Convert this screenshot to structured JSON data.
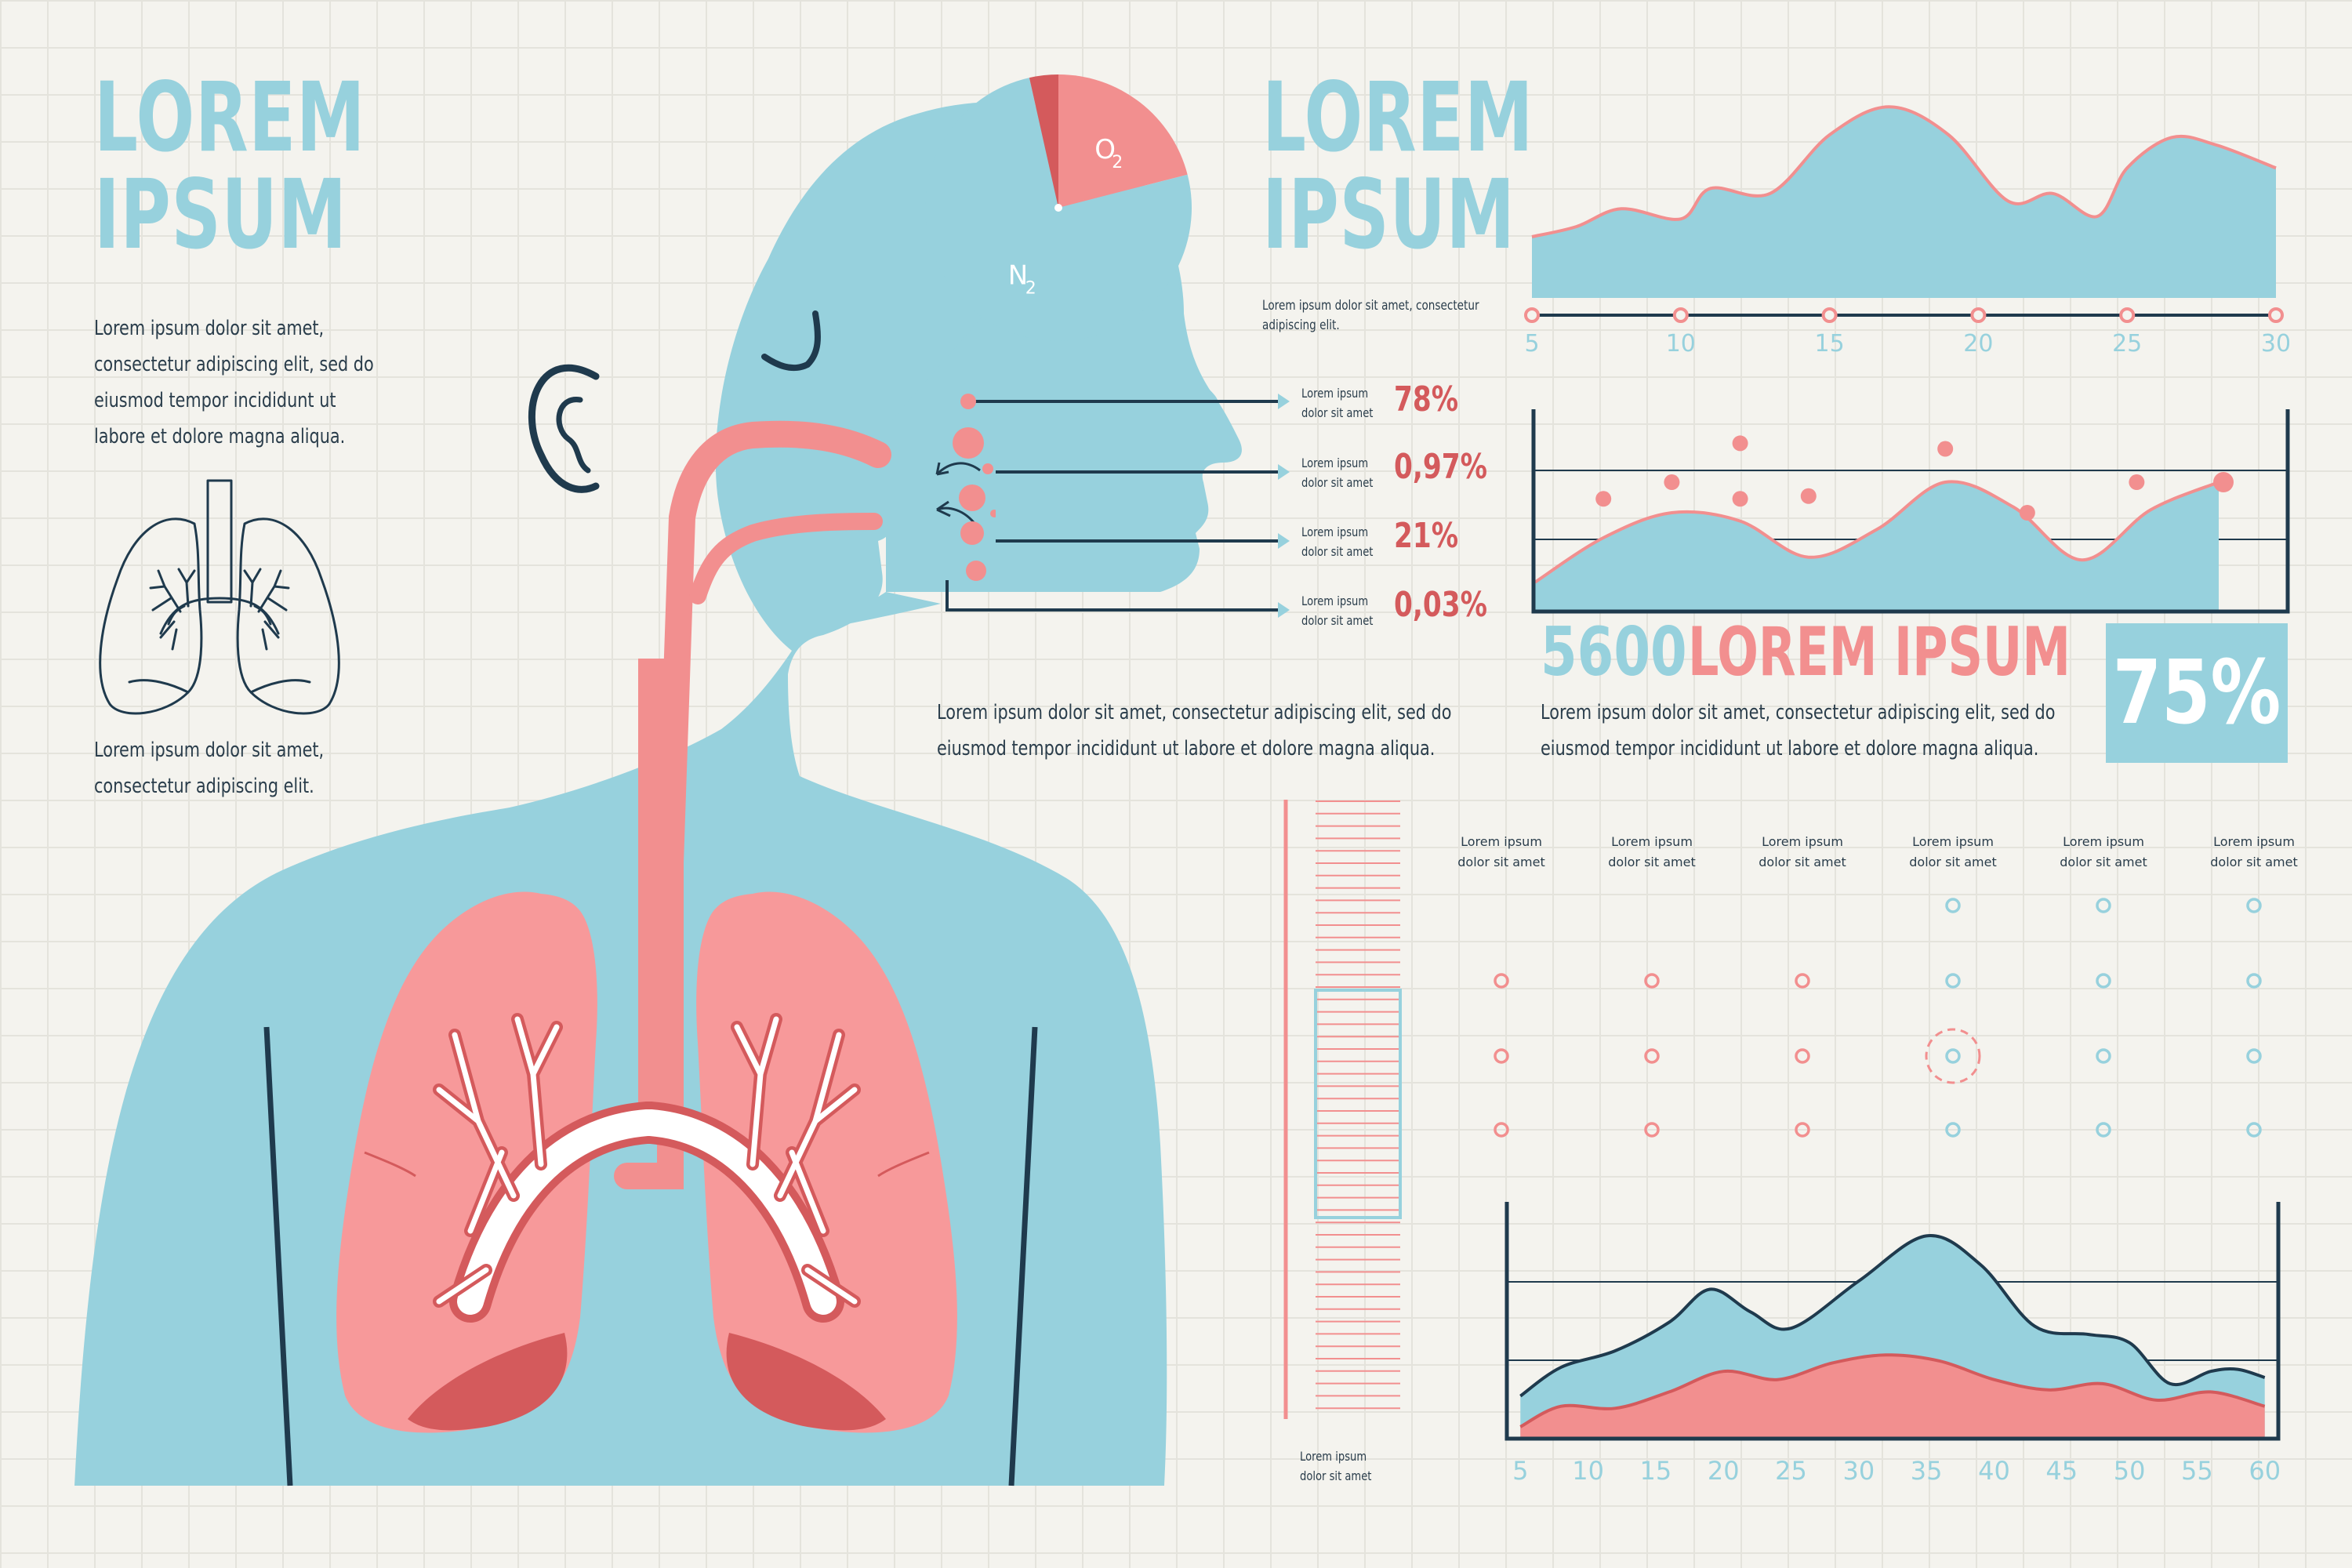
{
  "colors": {
    "blue": "#97d1dd",
    "pink": "#f28f8f",
    "red": "#d45a5c",
    "dark": "#1f3a4d",
    "background": "#f4f3ee"
  },
  "header_left": {
    "line1": "LOREM",
    "line2": "IPSUM"
  },
  "header_mid": {
    "line1": "LOREM",
    "line2": "IPSUM"
  },
  "left_text": {
    "lines": [
      "Lorem ipsum dolor sit amet,",
      "consectetur adipiscing elit, sed do",
      "eiusmod tempor incididunt ut",
      "labore et dolore magna aliqua."
    ]
  },
  "left_text2": {
    "lines": [
      "Lorem ipsum dolor sit amet,",
      "consectetur adipiscing elit."
    ]
  },
  "mid_small": {
    "lines": [
      "Lorem ipsum dolor sit amet, consectetur",
      "adipiscing elit."
    ]
  },
  "gas_list": [
    {
      "label1": "Lorem ipsum",
      "label2": "dolor sit amet",
      "value": "78%"
    },
    {
      "label1": "Lorem ipsum",
      "label2": "dolor sit amet",
      "value": "0,97%"
    },
    {
      "label1": "Lorem ipsum",
      "label2": "dolor sit amet",
      "value": "21%"
    },
    {
      "label1": "Lorem ipsum",
      "label2": "dolor sit amet",
      "value": "0,03%"
    }
  ],
  "mid_para": {
    "lines": [
      "Lorem ipsum dolor sit amet, consectetur adipiscing elit, sed do",
      "eiusmod tempor incididunt ut labore et dolore magna aliqua."
    ]
  },
  "right_para": {
    "lines": [
      "Lorem ipsum dolor sit amet, consectetur adipiscing elit, sed do",
      "eiusmod tempor incididunt ut labore et dolore magna aliqua."
    ]
  },
  "stat": {
    "value": "5600",
    "label": "LOREM IPSUM"
  },
  "badge": {
    "value": "75%"
  },
  "gauge_caption": {
    "line1": "Lorem ipsum",
    "line2": "dolor sit amet"
  },
  "chart_data": [
    {
      "type": "pie",
      "slices": [
        {
          "label": "O2",
          "main": "O",
          "sub": "2",
          "value": 21,
          "color": "#f28f8f"
        },
        {
          "label": "N2",
          "main": "N",
          "sub": "2",
          "value": 75.5,
          "color": "#97d1dd"
        },
        {
          "label": "",
          "value": 3.5,
          "color": "#d45a5c"
        }
      ]
    },
    {
      "type": "area",
      "x_ticks": [
        5,
        10,
        15,
        20,
        25,
        30
      ],
      "x": [
        5,
        6.5,
        8,
        10,
        11,
        13,
        15,
        17,
        19,
        21,
        22.5,
        24,
        25,
        26.5,
        28,
        30
      ],
      "y": [
        2.4,
        2.8,
        3.5,
        3.1,
        4.3,
        4.1,
        6.4,
        7.5,
        6.4,
        3.8,
        4.1,
        3.2,
        5.1,
        6.3,
        6.0,
        5.1
      ],
      "ylim": [
        0,
        8
      ]
    },
    {
      "type": "area",
      "x": [
        0,
        1,
        2,
        3,
        4,
        5,
        6,
        7,
        8,
        9,
        10
      ],
      "y": [
        1.0,
        2.6,
        3.5,
        3.2,
        1.9,
        2.9,
        4.6,
        3.7,
        1.8,
        3.6,
        4.6
      ],
      "points": [
        {
          "x": 1,
          "y": 4.0
        },
        {
          "x": 2,
          "y": 4.6
        },
        {
          "x": 3,
          "y": 6.0
        },
        {
          "x": 3,
          "y": 4.0
        },
        {
          "x": 4,
          "y": 4.1
        },
        {
          "x": 6,
          "y": 5.8
        },
        {
          "x": 7.2,
          "y": 3.5
        },
        {
          "x": 8.8,
          "y": 4.6
        }
      ],
      "ylim": [
        0,
        7
      ]
    },
    {
      "type": "scatter",
      "columns": [
        {
          "label1": "Lorem ipsum",
          "label2": "dolor sit amet"
        },
        {
          "label1": "Lorem ipsum",
          "label2": "dolor sit amet"
        },
        {
          "label1": "Lorem ipsum",
          "label2": "dolor sit amet"
        },
        {
          "label1": "Lorem ipsum",
          "label2": "dolor sit amet"
        },
        {
          "label1": "Lorem ipsum",
          "label2": "dolor sit amet"
        },
        {
          "label1": "Lorem ipsum",
          "label2": "dolor sit amet"
        }
      ],
      "dot_counts": [
        3,
        3,
        3,
        4,
        4,
        4
      ],
      "highlight": {
        "column": 4,
        "row": 3
      }
    },
    {
      "type": "area",
      "x_ticks": [
        5,
        10,
        15,
        20,
        25,
        30,
        35,
        40,
        45,
        50,
        55,
        60
      ],
      "series": [
        {
          "color": "#97d1dd",
          "x": [
            5,
            8,
            12,
            16,
            19,
            22,
            25,
            30,
            35,
            39,
            43,
            47,
            50,
            53,
            56,
            58,
            60
          ],
          "y": [
            2,
            3.4,
            4.2,
            5.6,
            7.2,
            6.1,
            5.3,
            7.6,
            9.8,
            8.4,
            5.4,
            5.0,
            4.6,
            2.6,
            3.2,
            3.3,
            2.9
          ]
        },
        {
          "color": "#f28f8f",
          "x": [
            5,
            8,
            12,
            16,
            20,
            24,
            28,
            32,
            36,
            40,
            44,
            48,
            52,
            56,
            60
          ],
          "y": [
            0.5,
            1.5,
            1.4,
            2.2,
            3.2,
            2.8,
            3.6,
            4.0,
            3.7,
            2.8,
            2.3,
            2.6,
            1.8,
            2.2,
            1.5
          ]
        }
      ],
      "xlim": [
        4,
        61
      ],
      "ylim": [
        0,
        11
      ]
    }
  ]
}
